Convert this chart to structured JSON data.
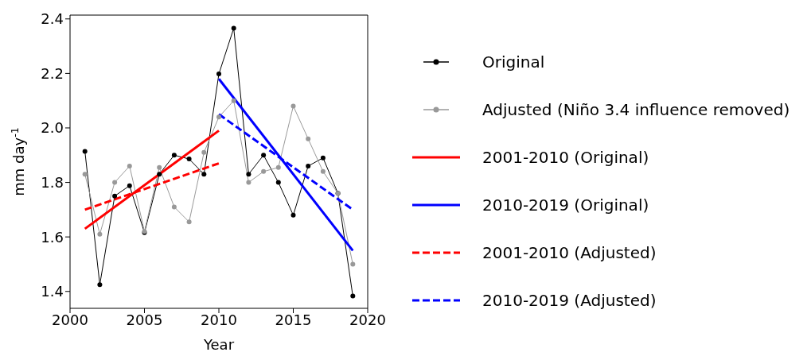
{
  "chart_data": {
    "type": "line",
    "xlabel": "Year",
    "ylabel": "mm day$^{-1}$",
    "xlim": [
      2000,
      2020
    ],
    "xticks": [
      2000,
      2005,
      2010,
      2015,
      2020
    ],
    "ylim": [
      1.338,
      2.414
    ],
    "yticks": [
      1.4,
      1.6,
      1.8,
      {
        "value": 2,
        "label": "2.0"
      },
      2.2,
      2.4
    ],
    "grid": false,
    "legend": "right",
    "series": [
      {
        "name": "Original",
        "color": "#000000",
        "marker": "circle",
        "x": [
          2001,
          2002,
          2003,
          2004,
          2005,
          2006,
          2007,
          2008,
          2009,
          2010,
          2011,
          2012,
          2013,
          2014,
          2015,
          2016,
          2017,
          2018,
          2019
        ],
        "values": [
          1.914,
          1.425,
          1.75,
          1.788,
          1.616,
          1.83,
          1.9,
          1.886,
          1.83,
          2.198,
          2.366,
          1.83,
          1.9,
          1.8,
          1.68,
          1.86,
          1.89,
          1.76,
          1.383
        ]
      },
      {
        "name": "Adjusted (Niño 3.4 influence removed)",
        "color": "#999999",
        "marker": "circle",
        "x": [
          2001,
          2002,
          2003,
          2004,
          2005,
          2006,
          2007,
          2008,
          2009,
          2010,
          2011,
          2012,
          2013,
          2014,
          2015,
          2016,
          2017,
          2018,
          2019
        ],
        "values": [
          1.83,
          1.61,
          1.8,
          1.86,
          1.62,
          1.855,
          1.71,
          1.655,
          1.91,
          2.04,
          2.1,
          1.8,
          1.84,
          1.855,
          2.08,
          1.96,
          1.84,
          1.76,
          1.5
        ]
      },
      {
        "name": "2001-2010 (Original)",
        "color": "#ff0000",
        "marker": "none",
        "line_style": "solid",
        "x": [
          2001,
          2010
        ],
        "values": [
          1.63,
          1.99
        ]
      },
      {
        "name": "2010-2019 (Original)",
        "color": "#0000ff",
        "marker": "none",
        "line_style": "solid",
        "x": [
          2010,
          2019
        ],
        "values": [
          2.18,
          1.55
        ]
      },
      {
        "name": "2001-2010 (Adjusted)",
        "color": "#ff0000",
        "marker": "none",
        "line_style": "dashed",
        "x": [
          2001,
          2010
        ],
        "values": [
          1.7,
          1.87
        ]
      },
      {
        "name": "2010-2019 (Adjusted)",
        "color": "#0000ff",
        "marker": "none",
        "line_style": "dashed",
        "x": [
          2010,
          2019
        ],
        "values": [
          2.05,
          1.7
        ]
      }
    ]
  }
}
